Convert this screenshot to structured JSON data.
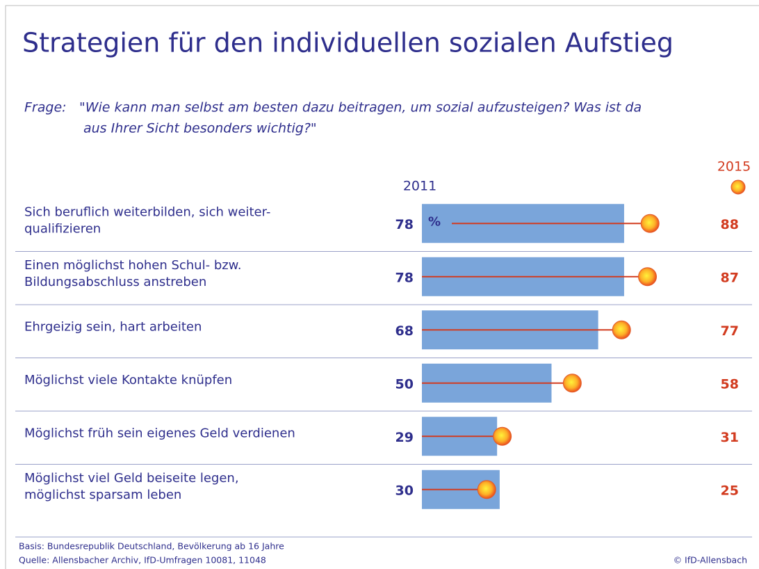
{
  "chart_data": {
    "type": "bar-dot",
    "title": "Strategien für den individuellen sozialen Aufstieg",
    "question_label": "Frage:",
    "question": [
      "\"Wie kann man selbst am besten dazu beitragen, um sozial aufzusteigen? Was ist da",
      "aus Ihrer Sicht besonders wichtig?\""
    ],
    "unit": "%",
    "categories": [
      [
        "Sich beruflich weiterbilden, sich weiter-",
        "qualifizieren"
      ],
      [
        "Einen möglichst hohen Schul- bzw.",
        "Bildungsabschluss anstreben"
      ],
      [
        "Ehrgeizig sein, hart arbeiten"
      ],
      [
        "Möglichst viele Kontakte knüpfen"
      ],
      [
        "Möglichst früh sein eigenes Geld verdienen"
      ],
      [
        "Möglichst viel Geld beiseite legen,",
        "möglichst sparsam leben"
      ]
    ],
    "series": [
      {
        "name": "2011",
        "color": "#7aa5da",
        "values": [
          78,
          78,
          68,
          50,
          29,
          30
        ]
      },
      {
        "name": "2015",
        "color": "#d23b1f",
        "values": [
          88,
          87,
          77,
          58,
          31,
          25
        ]
      }
    ],
    "xlim": [
      0,
      100
    ],
    "footnotes": [
      "Basis: Bundesrepublik Deutschland, Bevölkerung ab 16 Jahre",
      "Quelle: Allensbacher Archiv, IfD-Umfragen 10081, 11048"
    ],
    "copyright": "© IfD-Allensbach"
  }
}
